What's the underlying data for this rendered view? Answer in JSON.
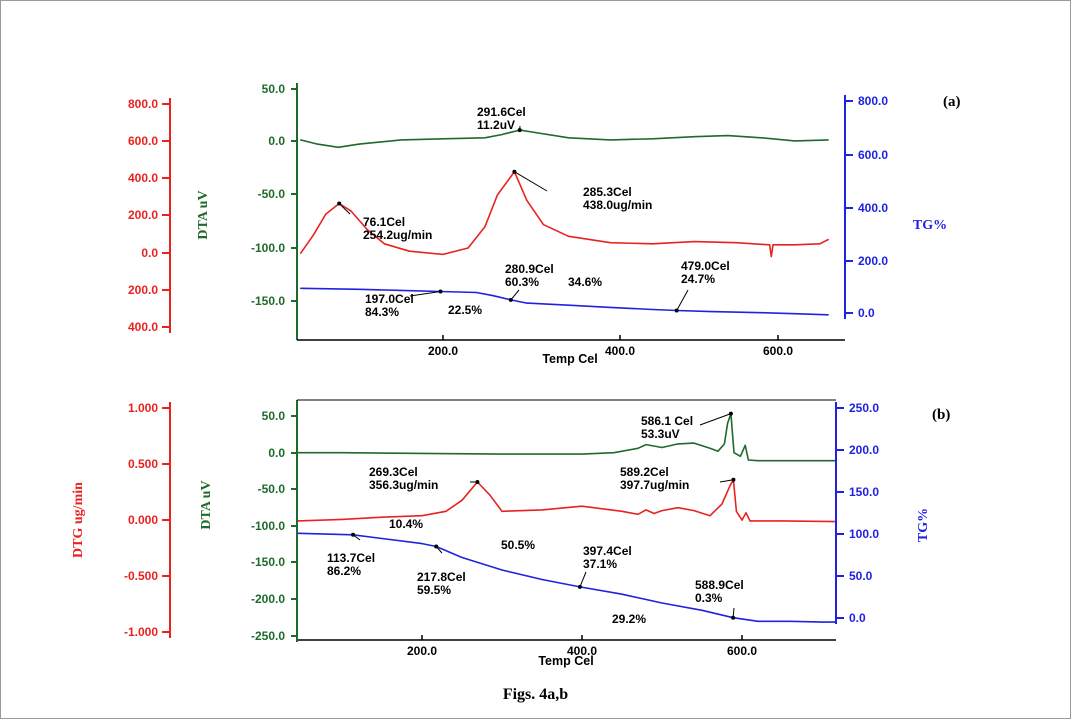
{
  "caption": "Figs. 4a,b",
  "colors": {
    "dtg": "#e8231f",
    "dta": "#1f6a2a",
    "tg": "#1f22e0",
    "axis": "#000000"
  },
  "chart_data": [
    {
      "type": "line",
      "panel_label": "(a)",
      "xlabel": "Temp Cel",
      "x_ticks": [
        "200.0",
        "400.0",
        "600.0"
      ],
      "xlim": [
        30,
        660
      ],
      "axes": {
        "dtg": {
          "label": "",
          "ticks": [
            "800.0",
            "600.0",
            "400.0",
            "200.0",
            "0.0",
            "200.0",
            "400.0"
          ]
        },
        "dta": {
          "label": "DTA uV",
          "ticks": [
            "50.0",
            "0.0",
            "-50.0",
            "-100.0",
            "-150.0"
          ],
          "ylim": [
            -190,
            50
          ]
        },
        "tg": {
          "label": "TG%",
          "ticks": [
            "800.0",
            "600.0",
            "400.0",
            "200.0",
            "0.0"
          ],
          "ylim": [
            -70,
            800
          ]
        }
      },
      "series": [
        {
          "axis": "dta",
          "color": "#1f6a2a",
          "x": [
            30,
            50,
            75,
            100,
            150,
            200,
            250,
            270,
            291.6,
            310,
            350,
            400,
            450,
            500,
            540,
            580,
            620,
            660
          ],
          "y": [
            2,
            -2,
            -5,
            -2,
            2,
            3,
            4,
            7,
            11.2,
            9,
            4,
            2,
            3,
            5,
            6,
            4,
            1,
            2
          ]
        },
        {
          "axis": "dta",
          "color": "#e8231f",
          "x": [
            30,
            45,
            60,
            76.1,
            90,
            110,
            130,
            160,
            200,
            230,
            250,
            265,
            285.3,
            300,
            320,
            350,
            400,
            450,
            500,
            550,
            590,
            592,
            594,
            620,
            650,
            660
          ],
          "y": [
            -105,
            -88,
            -68,
            -58,
            -65,
            -83,
            -96,
            -103,
            -106,
            -100,
            -80,
            -50,
            -28,
            -55,
            -78,
            -89,
            -95,
            -96,
            -94,
            -95,
            -97,
            -108,
            -97,
            -97,
            -96,
            -92
          ]
        },
        {
          "axis": "dta",
          "color": "#1f22e0",
          "x": [
            30,
            100,
            150,
            197,
            240,
            260,
            280.9,
            300,
            350,
            400,
            450,
            479,
            520,
            580,
            620,
            660
          ],
          "y": [
            -138,
            -139,
            -140,
            -141,
            -142,
            -145,
            -149,
            -152,
            -154,
            -156,
            -158,
            -159,
            -160,
            -161,
            -162,
            -163
          ]
        }
      ],
      "annotations": [
        {
          "text": [
            "291.6Cel",
            "11.2uV"
          ],
          "axis": "dta",
          "x": 291.6,
          "y": 11.2
        },
        {
          "text": [
            "285.3Cel",
            "438.0ug/min"
          ],
          "axis": "dta",
          "x": 285.3,
          "y": -28
        },
        {
          "text": [
            "76.1Cel",
            "254.2ug/min"
          ],
          "axis": "dta",
          "x": 76.1,
          "y": -58
        },
        {
          "text": [
            "280.9Cel",
            "60.3%"
          ],
          "axis": "dta",
          "x": 280.9,
          "y": -149
        },
        {
          "text": [
            "479.0Cel",
            "24.7%"
          ],
          "axis": "dta",
          "x": 479,
          "y": -159
        },
        {
          "text": [
            "197.0Cel",
            "84.3%"
          ],
          "axis": "dta",
          "x": 197,
          "y": -141
        },
        {
          "text": [
            "22.5%"
          ]
        },
        {
          "text": [
            "34.6%"
          ]
        }
      ]
    },
    {
      "type": "line",
      "panel_label": "(b)",
      "xlabel": "Temp Cel",
      "x_ticks": [
        "200.0",
        "400.0",
        "600.0"
      ],
      "xlim": [
        30,
        720
      ],
      "axes": {
        "dtg": {
          "label": "DTG ug/min",
          "ticks": [
            "1.000",
            "0.500",
            "0.000",
            "-0.500",
            "-1.000"
          ],
          "ylim": [
            -1,
            1
          ]
        },
        "dta": {
          "label": "DTA uV",
          "ticks": [
            "50.0",
            "0.0",
            "-50.0",
            "-100.0",
            "-150.0",
            "-200.0",
            "-250.0"
          ],
          "ylim": [
            -250,
            70
          ]
        },
        "tg": {
          "label": "TG%",
          "ticks": [
            "250.0",
            "200.0",
            "150.0",
            "100.0",
            "50.0",
            "0.0"
          ],
          "ylim": [
            -20,
            250
          ]
        }
      },
      "series": [
        {
          "axis": "dta",
          "color": "#1f6a2a",
          "x": [
            30,
            100,
            200,
            300,
            400,
            440,
            470,
            480,
            500,
            520,
            540,
            560,
            570,
            578,
            582,
            586.1,
            590,
            598,
            604,
            608,
            620,
            700,
            720
          ],
          "y": [
            0,
            0,
            -1,
            -2,
            -2,
            0,
            6,
            11,
            7,
            12,
            13,
            6,
            2,
            12,
            40,
            53.3,
            0,
            -5,
            10,
            -10,
            -11,
            -11,
            -11
          ]
        },
        {
          "axis": "dta",
          "color": "#e8231f",
          "x": [
            30,
            100,
            150,
            200,
            230,
            250,
            269.3,
            285,
            300,
            350,
            400,
            450,
            470,
            480,
            490,
            500,
            520,
            540,
            560,
            575,
            585,
            589.2,
            593,
            600,
            605,
            610,
            650,
            720
          ],
          "y": [
            -93,
            -91,
            -88,
            -86,
            -80,
            -65,
            -40,
            -58,
            -80,
            -78,
            -73,
            -80,
            -84,
            -78,
            -83,
            -79,
            -75,
            -79,
            -86,
            -70,
            -45,
            -37,
            -80,
            -92,
            -82,
            -93,
            -93,
            -94
          ]
        },
        {
          "axis": "dta",
          "color": "#1f22e0",
          "x": [
            30,
            80,
            113.7,
            150,
            200,
            217.8,
            250,
            300,
            350,
            397.4,
            450,
            500,
            550,
            588.9,
            620,
            660,
            700,
            720
          ],
          "y": [
            -110,
            -111,
            -112,
            -117,
            -124,
            -128,
            -143,
            -160,
            -173,
            -183,
            -193,
            -205,
            -215,
            -225,
            -230,
            -230,
            -231,
            -231
          ]
        }
      ],
      "annotations": [
        {
          "text": [
            "586.1 Cel",
            "53.3uV"
          ],
          "axis": "dta",
          "x": 586.1,
          "y": 53.3
        },
        {
          "text": [
            "269.3Cel",
            "356.3ug/min"
          ],
          "axis": "dta",
          "x": 269.3,
          "y": -40
        },
        {
          "text": [
            "589.2Cel",
            "397.7ug/min"
          ],
          "axis": "dta",
          "x": 589.2,
          "y": -37
        },
        {
          "text": [
            "113.7Cel",
            "86.2%"
          ],
          "axis": "dta",
          "x": 113.7,
          "y": -112
        },
        {
          "text": [
            "217.8Cel",
            "59.5%"
          ],
          "axis": "dta",
          "x": 217.8,
          "y": -128
        },
        {
          "text": [
            "397.4Cel",
            "37.1%"
          ],
          "axis": "dta",
          "x": 397.4,
          "y": -183
        },
        {
          "text": [
            "588.9Cel",
            "0.3%"
          ],
          "axis": "dta",
          "x": 588.9,
          "y": -225
        },
        {
          "text": [
            "10.4%"
          ]
        },
        {
          "text": [
            "50.5%"
          ]
        },
        {
          "text": [
            "29.2%"
          ]
        }
      ]
    }
  ]
}
